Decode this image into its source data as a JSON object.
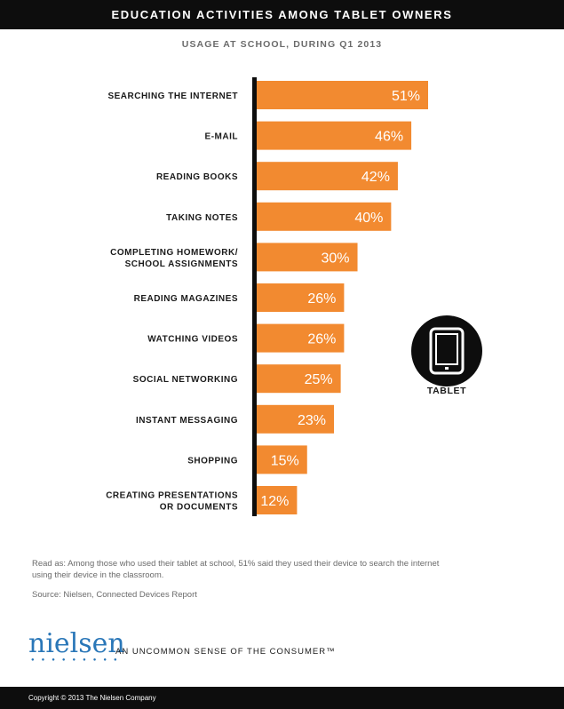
{
  "header": {
    "title": "EDUCATION ACTIVITIES AMONG TABLET OWNERS",
    "subtitle": "USAGE AT SCHOOL, DURING Q1 2013"
  },
  "chart_data": {
    "type": "bar",
    "orientation": "horizontal",
    "title": "EDUCATION ACTIVITIES AMONG TABLET OWNERS",
    "subtitle": "USAGE AT SCHOOL, DURING Q1 2013",
    "categories": [
      [
        "SEARCHING THE INTERNET"
      ],
      [
        "E-MAIL"
      ],
      [
        "READING BOOKS"
      ],
      [
        "TAKING NOTES"
      ],
      [
        "COMPLETING HOMEWORK/",
        "SCHOOL ASSIGNMENTS"
      ],
      [
        "READING MAGAZINES"
      ],
      [
        "WATCHING VIDEOS"
      ],
      [
        "SOCIAL NETWORKING"
      ],
      [
        "INSTANT MESSAGING"
      ],
      [
        "SHOPPING"
      ],
      [
        "CREATING PRESENTATIONS",
        "OR DOCUMENTS"
      ]
    ],
    "values": [
      51,
      46,
      42,
      40,
      30,
      26,
      26,
      25,
      23,
      15,
      12
    ],
    "value_labels": [
      "51%",
      "46%",
      "42%",
      "40%",
      "30%",
      "26%",
      "26%",
      "25%",
      "23%",
      "15%",
      "12%"
    ],
    "unit": "%",
    "xlim": [
      0,
      51
    ],
    "grid": false,
    "bar_color": "#f28a30",
    "axis_color": "#0d0d0d"
  },
  "badge": {
    "icon": "tablet-icon",
    "label": "TABLET"
  },
  "notes": {
    "read_as": "Read as: Among those who used their tablet at school, 51% said they used their device to search the internet using their device in the classroom.",
    "source": "Source: Nielsen, Connected Devices Report"
  },
  "brand": {
    "logo": "nielsen",
    "tagline": "AN UNCOMMON SENSE OF THE CONSUMER™",
    "color": "#2a77b8"
  },
  "footer": {
    "copyright": "Copyright © 2013 The Nielsen Company"
  }
}
